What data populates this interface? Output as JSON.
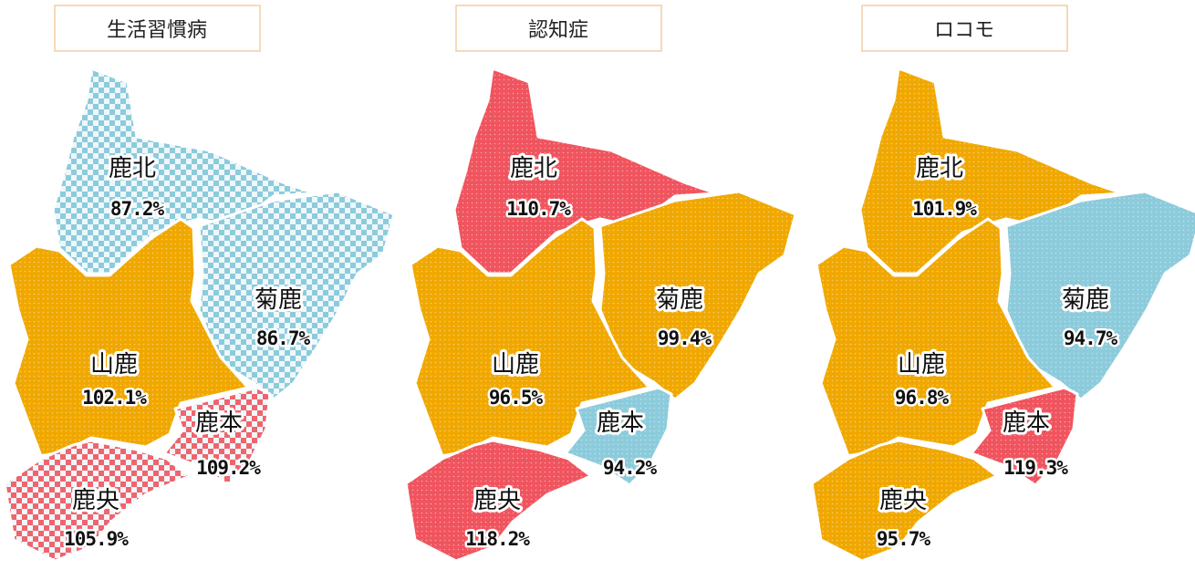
{
  "maps": [
    {
      "title": "生活習慣病",
      "regions": [
        {
          "name": "鹿北",
          "label": "87.2%",
          "color": "#8ccbdb",
          "pattern": "check"
        },
        {
          "name": "菊鹿",
          "label": "86.7%",
          "color": "#8ccbdb",
          "pattern": "check"
        },
        {
          "name": "山鹿",
          "label": "102.1%",
          "color": "#f0a800",
          "pattern": "dots"
        },
        {
          "name": "鹿本",
          "label": "109.2%",
          "color": "#f0646e",
          "pattern": "check"
        },
        {
          "name": "鹿央",
          "label": "105.9%",
          "color": "#f0646e",
          "pattern": "check"
        }
      ]
    },
    {
      "title": "認知症",
      "regions": [
        {
          "name": "鹿北",
          "label": "110.7%",
          "color": "#f0545e",
          "pattern": "dots"
        },
        {
          "name": "菊鹿",
          "label": "99.4%",
          "color": "#f0a800",
          "pattern": "dots"
        },
        {
          "name": "山鹿",
          "label": "96.5%",
          "color": "#f0a800",
          "pattern": "dots"
        },
        {
          "name": "鹿本",
          "label": "94.2%",
          "color": "#8ccbdb",
          "pattern": "dots"
        },
        {
          "name": "鹿央",
          "label": "118.2%",
          "color": "#f0545e",
          "pattern": "dots"
        }
      ]
    },
    {
      "title": "ロコモ",
      "regions": [
        {
          "name": "鹿北",
          "label": "101.9%",
          "color": "#f0a800",
          "pattern": "dots"
        },
        {
          "name": "菊鹿",
          "label": "94.7%",
          "color": "#8ccbdb",
          "pattern": "dots"
        },
        {
          "name": "山鹿",
          "label": "96.8%",
          "color": "#f0a800",
          "pattern": "dots"
        },
        {
          "name": "鹿本",
          "label": "119.3%",
          "color": "#f0545e",
          "pattern": "dots"
        },
        {
          "name": "鹿央",
          "label": "95.7%",
          "color": "#f0a800",
          "pattern": "dots"
        }
      ]
    }
  ]
}
